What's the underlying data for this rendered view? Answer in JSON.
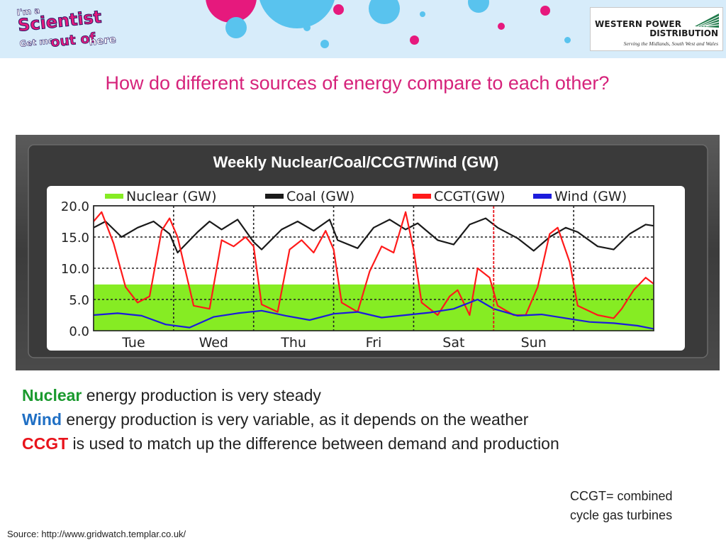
{
  "banner": {
    "logo_left_lines": [
      "I'm a",
      "Scientist",
      "Get me",
      "out of",
      "here"
    ],
    "logo_right": {
      "line1": "WESTERN POWER",
      "line2": "DISTRIBUTION",
      "tagline": "Serving the Midlands, South West and Wales"
    },
    "colors": {
      "background": "#d7ecfa",
      "pink": "#e6197d",
      "blue": "#59c3ee"
    }
  },
  "question": "How do different sources of energy compare to each other?",
  "chart_data": {
    "type": "line",
    "title": "Weekly Nuclear/Coal/CCGT/Wind (GW)",
    "x_tick_labels": [
      "Tue",
      "Wed",
      "Thu",
      "Fri",
      "Sat",
      "Sun"
    ],
    "x_unit": "days (Mon=0 … Mon=7)",
    "x_ticks": [
      1.5,
      2.5,
      3.5,
      4.5,
      5.5,
      6.5
    ],
    "x_range": [
      1,
      8
    ],
    "y_ticks": [
      0.0,
      5.0,
      10.0,
      15.0,
      20.0
    ],
    "y_tick_labels": [
      "0.0",
      "5.0",
      "10.0",
      "15.0",
      "20.0"
    ],
    "ylim": [
      0,
      20
    ],
    "grid": true,
    "legend_position": "top",
    "marker_x": 6,
    "series": [
      {
        "name": "Nuclear (GW)",
        "type": "area",
        "color": "#86ec23",
        "x": [
          1,
          8
        ],
        "y": [
          7.4,
          7.4
        ]
      },
      {
        "name": "Coal (GW)",
        "color": "#1a1a1a",
        "x": [
          1.0,
          1.15,
          1.35,
          1.55,
          1.75,
          1.95,
          2.05,
          2.3,
          2.45,
          2.6,
          2.8,
          3.0,
          3.1,
          3.35,
          3.55,
          3.75,
          3.95,
          4.05,
          4.3,
          4.5,
          4.7,
          4.9,
          5.05,
          5.3,
          5.5,
          5.7,
          5.9,
          6.05,
          6.3,
          6.5,
          6.7,
          6.9,
          7.05,
          7.3,
          7.5,
          7.7,
          7.9,
          8.0
        ],
        "y": [
          16.5,
          17.5,
          15.0,
          16.5,
          17.5,
          15.5,
          12.5,
          15.8,
          17.5,
          16.2,
          17.8,
          14.2,
          13.0,
          16.2,
          17.5,
          16.0,
          17.8,
          14.5,
          13.2,
          16.5,
          17.8,
          16.2,
          17.2,
          14.5,
          13.8,
          17.0,
          18.0,
          16.5,
          14.8,
          12.8,
          15.0,
          16.5,
          15.8,
          13.5,
          13.0,
          15.5,
          17.0,
          16.8
        ]
      },
      {
        "name": "CCGT(GW)",
        "color": "#ff1a1a",
        "x": [
          1.0,
          1.1,
          1.25,
          1.4,
          1.55,
          1.7,
          1.85,
          1.95,
          2.05,
          2.25,
          2.45,
          2.6,
          2.75,
          2.9,
          3.0,
          3.1,
          3.3,
          3.45,
          3.6,
          3.75,
          3.9,
          4.0,
          4.1,
          4.3,
          4.45,
          4.6,
          4.75,
          4.9,
          5.0,
          5.1,
          5.3,
          5.45,
          5.55,
          5.7,
          5.8,
          5.95,
          6.05,
          6.25,
          6.4,
          6.55,
          6.7,
          6.8,
          6.95,
          7.05,
          7.3,
          7.5,
          7.6,
          7.75,
          7.9,
          8.0
        ],
        "y": [
          17.5,
          19.0,
          14.0,
          7.0,
          4.5,
          5.5,
          16.0,
          18.0,
          15.0,
          4.0,
          3.5,
          14.5,
          13.5,
          15.0,
          13.5,
          4.2,
          3.0,
          13.0,
          14.5,
          12.5,
          16.0,
          13.0,
          4.5,
          3.0,
          9.5,
          13.5,
          12.5,
          19.0,
          13.0,
          4.5,
          2.5,
          5.5,
          6.5,
          2.5,
          10.0,
          8.5,
          4.0,
          2.5,
          2.5,
          7.0,
          15.5,
          16.5,
          11.0,
          4.0,
          2.5,
          2.0,
          3.5,
          6.5,
          8.5,
          7.5
        ]
      },
      {
        "name": "Wind (GW)",
        "color": "#1c1cdc",
        "x": [
          1.0,
          1.3,
          1.6,
          1.9,
          2.2,
          2.5,
          2.8,
          3.1,
          3.4,
          3.7,
          4.0,
          4.3,
          4.6,
          4.9,
          5.2,
          5.5,
          5.8,
          6.0,
          6.3,
          6.6,
          6.9,
          7.2,
          7.5,
          7.8,
          8.0
        ],
        "y": [
          2.5,
          2.8,
          2.4,
          1.0,
          0.5,
          2.2,
          2.8,
          3.2,
          2.4,
          1.7,
          2.7,
          3.0,
          2.1,
          2.5,
          2.9,
          3.5,
          5.0,
          3.5,
          2.4,
          2.6,
          2.0,
          1.4,
          1.2,
          0.8,
          0.3
        ]
      }
    ]
  },
  "statements": [
    {
      "keyword": "Nuclear",
      "keyword_color": "#1a9a2e",
      "text": " energy production is very steady"
    },
    {
      "keyword": "Wind",
      "keyword_color": "#1f6fc4",
      "text": " energy production is very variable, as it depends on the weather"
    },
    {
      "keyword": "CCGT",
      "keyword_color": "#e8131b",
      "text": " is used to match up the difference between demand and production"
    }
  ],
  "note": [
    "CCGT= combined",
    "cycle gas turbines"
  ],
  "source": "Source: http://www.gridwatch.templar.co.uk/"
}
